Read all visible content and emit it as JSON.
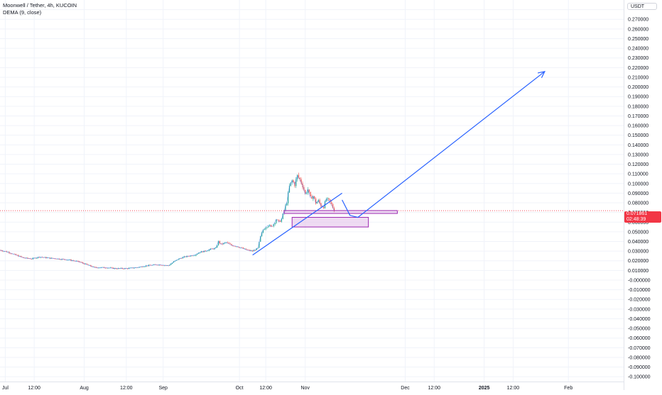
{
  "symbol": {
    "title": "Moonwell / Tether, 4h, KUCOIN",
    "indicator": "DEMA (9, close)"
  },
  "currency": "USDT",
  "last_price": {
    "value": "0.071861",
    "countdown": "02:48:39"
  },
  "colors": {
    "up": "#26a69a",
    "down": "#ef5350",
    "dema": "#2962ff",
    "drawing": "#2962ff",
    "zone_border": "#9c27b0",
    "zone_fill": "#e1bee7",
    "price_tag": "#f23645"
  },
  "chart_data": {
    "type": "line",
    "title": "Moonwell / Tether, 4h, KUCOIN",
    "ylim": [
      -0.105,
      0.29
    ],
    "y_ticks": [
      "0.280000",
      "0.270000",
      "0.260000",
      "0.250000",
      "0.240000",
      "0.230000",
      "0.220000",
      "0.210000",
      "0.200000",
      "0.190000",
      "0.180000",
      "0.170000",
      "0.160000",
      "0.150000",
      "0.140000",
      "0.130000",
      "0.120000",
      "0.110000",
      "0.100000",
      "0.090000",
      "0.080000",
      "0.070000",
      "0.060000",
      "0.050000",
      "0.040000",
      "0.030000",
      "0.020000",
      "0.010000",
      "-0.000000",
      "-0.010000",
      "-0.020000",
      "-0.030000",
      "-0.040000",
      "-0.050000",
      "-0.060000",
      "-0.070000",
      "-0.080000",
      "-0.090000",
      "-0.100000"
    ],
    "y_tick_values": [
      0.28,
      0.27,
      0.26,
      0.25,
      0.24,
      0.23,
      0.22,
      0.21,
      0.2,
      0.19,
      0.18,
      0.17,
      0.16,
      0.15,
      0.14,
      0.13,
      0.12,
      0.11,
      0.1,
      0.09,
      0.08,
      0.07,
      0.06,
      0.05,
      0.04,
      0.03,
      0.02,
      0.01,
      0.0,
      -0.01,
      -0.02,
      -0.03,
      -0.04,
      -0.05,
      -0.06,
      -0.07,
      -0.08,
      -0.09,
      -0.1
    ],
    "x_ticks": [
      "Jul",
      "12:00",
      "Aug",
      "12:00",
      "Sep",
      "Oct",
      "12:00",
      "Nov",
      "Dec",
      "12:00",
      "2025",
      "12:00",
      "Feb"
    ],
    "x_tick_bold": [
      false,
      false,
      false,
      false,
      false,
      false,
      false,
      false,
      false,
      false,
      true,
      false,
      false
    ],
    "x_tick_days": [
      0,
      11,
      30,
      46,
      60,
      89,
      99,
      114,
      152,
      163,
      182,
      193,
      214
    ],
    "x_range_days": [
      -2,
      235
    ],
    "price_series": [
      [
        -2,
        0.031
      ],
      [
        1,
        0.029
      ],
      [
        4,
        0.026
      ],
      [
        7,
        0.023
      ],
      [
        10,
        0.022
      ],
      [
        13,
        0.024
      ],
      [
        16,
        0.023
      ],
      [
        20,
        0.022
      ],
      [
        24,
        0.021
      ],
      [
        28,
        0.019
      ],
      [
        31,
        0.016
      ],
      [
        34,
        0.013
      ],
      [
        38,
        0.013
      ],
      [
        42,
        0.012
      ],
      [
        46,
        0.012
      ],
      [
        50,
        0.013
      ],
      [
        54,
        0.015
      ],
      [
        58,
        0.016
      ],
      [
        62,
        0.015
      ],
      [
        64,
        0.019
      ],
      [
        66,
        0.022
      ],
      [
        68,
        0.024
      ],
      [
        70,
        0.025
      ],
      [
        72,
        0.026
      ],
      [
        74,
        0.029
      ],
      [
        76,
        0.03
      ],
      [
        78,
        0.032
      ],
      [
        80,
        0.033
      ],
      [
        81,
        0.04
      ],
      [
        82,
        0.037
      ],
      [
        84,
        0.039
      ],
      [
        86,
        0.036
      ],
      [
        88,
        0.035
      ],
      [
        90,
        0.033
      ],
      [
        92,
        0.031
      ],
      [
        94,
        0.03
      ],
      [
        96,
        0.033
      ],
      [
        97,
        0.045
      ],
      [
        98,
        0.052
      ],
      [
        99,
        0.055
      ],
      [
        100,
        0.057
      ],
      [
        101,
        0.055
      ],
      [
        102,
        0.058
      ],
      [
        103,
        0.063
      ],
      [
        104,
        0.06
      ],
      [
        105,
        0.063
      ],
      [
        106,
        0.072
      ],
      [
        107,
        0.081
      ],
      [
        108,
        0.097
      ],
      [
        109,
        0.103
      ],
      [
        110,
        0.099
      ],
      [
        111,
        0.108
      ],
      [
        112,
        0.104
      ],
      [
        113,
        0.098
      ],
      [
        114,
        0.089
      ],
      [
        115,
        0.094
      ],
      [
        116,
        0.085
      ],
      [
        117,
        0.087
      ],
      [
        118,
        0.08
      ],
      [
        119,
        0.082
      ],
      [
        120,
        0.077
      ],
      [
        121,
        0.076
      ],
      [
        122,
        0.084
      ],
      [
        123,
        0.082
      ],
      [
        124,
        0.078
      ],
      [
        125,
        0.072
      ]
    ],
    "drawings": {
      "support_trendline": [
        [
          94,
          0.026
        ],
        [
          128,
          0.09
        ]
      ],
      "projection_path": [
        [
          128,
          0.083
        ],
        [
          131,
          0.067
        ],
        [
          134,
          0.065
        ],
        [
          205,
          0.216
        ]
      ],
      "resistance_zone": {
        "days": [
          106,
          149
        ],
        "price": [
          0.069,
          0.072
        ]
      },
      "demand_zone": {
        "days": [
          109,
          138
        ],
        "price": [
          0.055,
          0.065
        ]
      },
      "last_price_line": 0.0719
    }
  }
}
